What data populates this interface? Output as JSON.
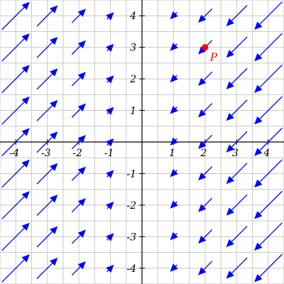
{
  "chart_data": {
    "type": "vector-field",
    "xlim": [
      -4.5,
      4.5
    ],
    "ylim": [
      -4.5,
      4.5
    ],
    "grid": true,
    "grid_step": 0.5,
    "field_description": "F(x, y) = (-x, -x)",
    "field_rows_y": [
      -4,
      -3,
      -2,
      -1,
      0,
      1,
      2,
      3,
      4
    ],
    "field_cols_x": [
      -4,
      -3,
      -2,
      -1,
      1,
      2,
      3,
      4
    ],
    "x_tick_labels": [
      "-4",
      "-3",
      "-2",
      "-1",
      "1",
      "2",
      "3",
      "4"
    ],
    "y_tick_labels": [
      "4",
      "3",
      "2",
      "1",
      "-1",
      "-2",
      "-3",
      "-4"
    ],
    "x_tick_values": [
      -4,
      -3,
      -2,
      -1,
      1,
      2,
      3,
      4
    ],
    "y_tick_values": [
      4,
      3,
      2,
      1,
      -1,
      -2,
      -3,
      -4
    ],
    "point": {
      "label": "P",
      "x": 2,
      "y": 3,
      "color": "#ff0000"
    },
    "arrow_color": "#0000ff",
    "grid_color": "#c8c8c8",
    "axis_color": "#000000"
  }
}
